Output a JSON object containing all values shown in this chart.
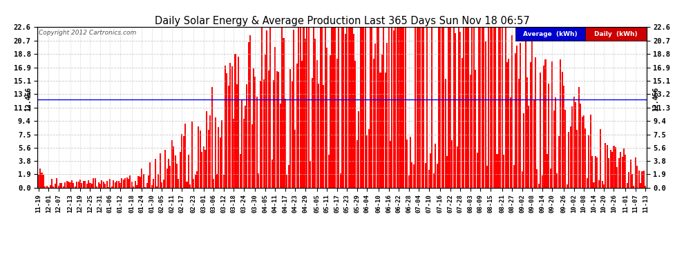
{
  "title": "Daily Solar Energy & Average Production Last 365 Days Sun Nov 18 06:57",
  "copyright": "Copyright 2012 Cartronics.com",
  "average_value": 12.456,
  "average_label": "12.456",
  "yticks": [
    0.0,
    1.9,
    3.8,
    5.6,
    7.5,
    9.4,
    11.3,
    13.2,
    15.1,
    16.9,
    18.8,
    20.7,
    22.6
  ],
  "ymax": 22.6,
  "ymin": 0.0,
  "avg_line_color": "#0000ff",
  "bar_color": "#ff0000",
  "background_color": "#ffffff",
  "grid_color": "#bbbbbb",
  "title_color": "#000000",
  "legend_avg_bg": "#0000cc",
  "legend_daily_bg": "#cc0000",
  "x_labels": [
    "11-19",
    "12-01",
    "12-07",
    "12-13",
    "12-19",
    "12-25",
    "12-31",
    "01-06",
    "01-12",
    "01-18",
    "01-24",
    "01-30",
    "02-05",
    "02-11",
    "02-17",
    "02-23",
    "03-01",
    "03-06",
    "03-12",
    "03-18",
    "03-24",
    "03-30",
    "04-05",
    "04-11",
    "04-17",
    "04-23",
    "04-29",
    "05-05",
    "05-11",
    "05-17",
    "05-23",
    "05-29",
    "06-04",
    "06-10",
    "06-16",
    "06-22",
    "06-28",
    "07-04",
    "07-10",
    "07-16",
    "07-22",
    "07-28",
    "08-03",
    "08-09",
    "08-15",
    "08-21",
    "08-27",
    "09-02",
    "09-08",
    "09-14",
    "09-20",
    "09-26",
    "10-02",
    "10-08",
    "10-14",
    "10-20",
    "10-26",
    "11-01",
    "11-07",
    "11-13"
  ],
  "num_bars": 365,
  "seed": 42
}
